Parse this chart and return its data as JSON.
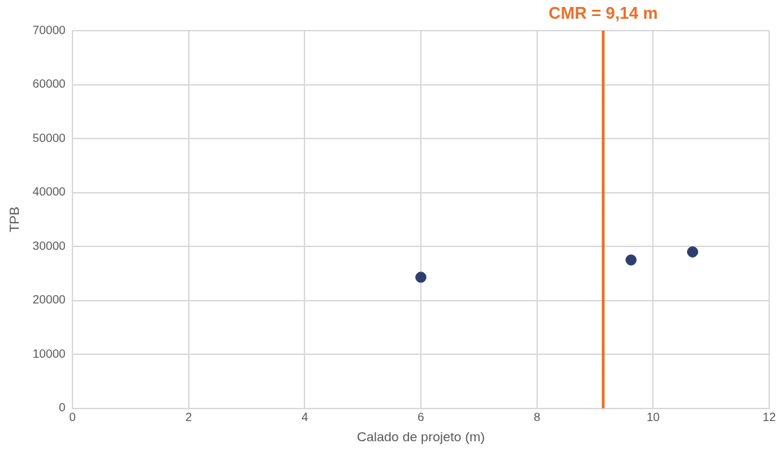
{
  "chart_data": {
    "type": "scatter",
    "xlabel": "Calado de projeto (m)",
    "ylabel": "TPB",
    "x": [
      6.0,
      9.62,
      10.68
    ],
    "series": [
      {
        "color": "#2e3f6e",
        "values": [
          24300,
          27500,
          29000
        ]
      }
    ],
    "xlim": [
      0,
      12
    ],
    "xticks": [
      0,
      2,
      4,
      6,
      8,
      10,
      12
    ],
    "ylim": [
      0,
      70000
    ],
    "yticks": [
      0,
      10000,
      20000,
      30000,
      40000,
      50000,
      60000,
      70000
    ],
    "grid": true,
    "legend": false,
    "marker": "circle",
    "ref_lines": [
      {
        "axis": "x",
        "value": 9.14,
        "label": "CMR = 9,14 m",
        "color": "#e8702a"
      }
    ]
  }
}
